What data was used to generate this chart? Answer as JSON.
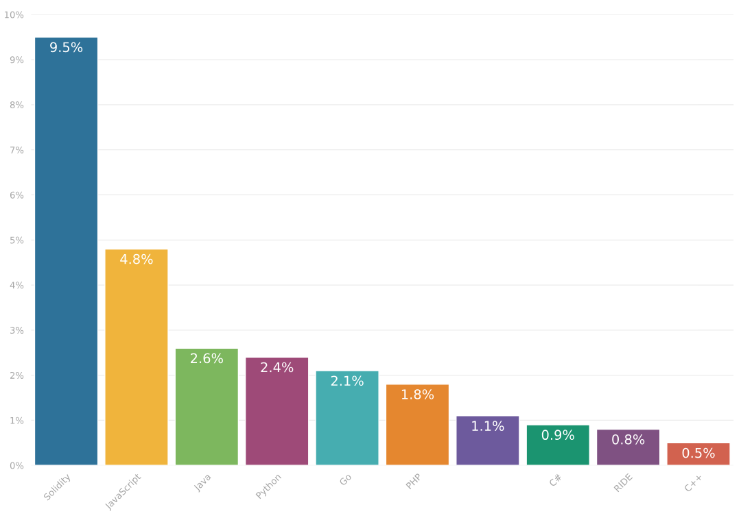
{
  "chart_data": {
    "type": "bar",
    "categories": [
      "Solidity",
      "JavaScript",
      "Java",
      "Python",
      "Go",
      "PHP",
      null,
      "C#",
      "RIDE",
      "C++"
    ],
    "values": [
      9.5,
      4.8,
      2.6,
      2.4,
      2.1,
      1.8,
      1.1,
      0.9,
      0.8,
      0.5
    ],
    "colors": [
      "#2e7299",
      "#f0b43c",
      "#7db75e",
      "#9e4a78",
      "#46adb0",
      "#e5872f",
      "#6d5a9d",
      "#1b9470",
      "#7f5182",
      "#d2624f"
    ],
    "value_labels": [
      "9.5%",
      "4.8%",
      "2.6%",
      "2.4%",
      "2.1%",
      "1.8%",
      "1.1%",
      "0.9%",
      "0.8%",
      "0.5%"
    ],
    "ylim": [
      0,
      10
    ],
    "yticks": [
      {
        "value": 0,
        "label": "0%"
      },
      {
        "value": 1,
        "label": "1%"
      },
      {
        "value": 2,
        "label": "2%"
      },
      {
        "value": 3,
        "label": "3%"
      },
      {
        "value": 4,
        "label": "4%"
      },
      {
        "value": 5,
        "label": "5%"
      },
      {
        "value": 6,
        "label": "6%"
      },
      {
        "value": 7,
        "label": "7%"
      },
      {
        "value": 8,
        "label": "8%"
      },
      {
        "value": 9,
        "label": "9%"
      },
      {
        "value": 10,
        "label": "10%"
      }
    ],
    "grid": "y"
  }
}
